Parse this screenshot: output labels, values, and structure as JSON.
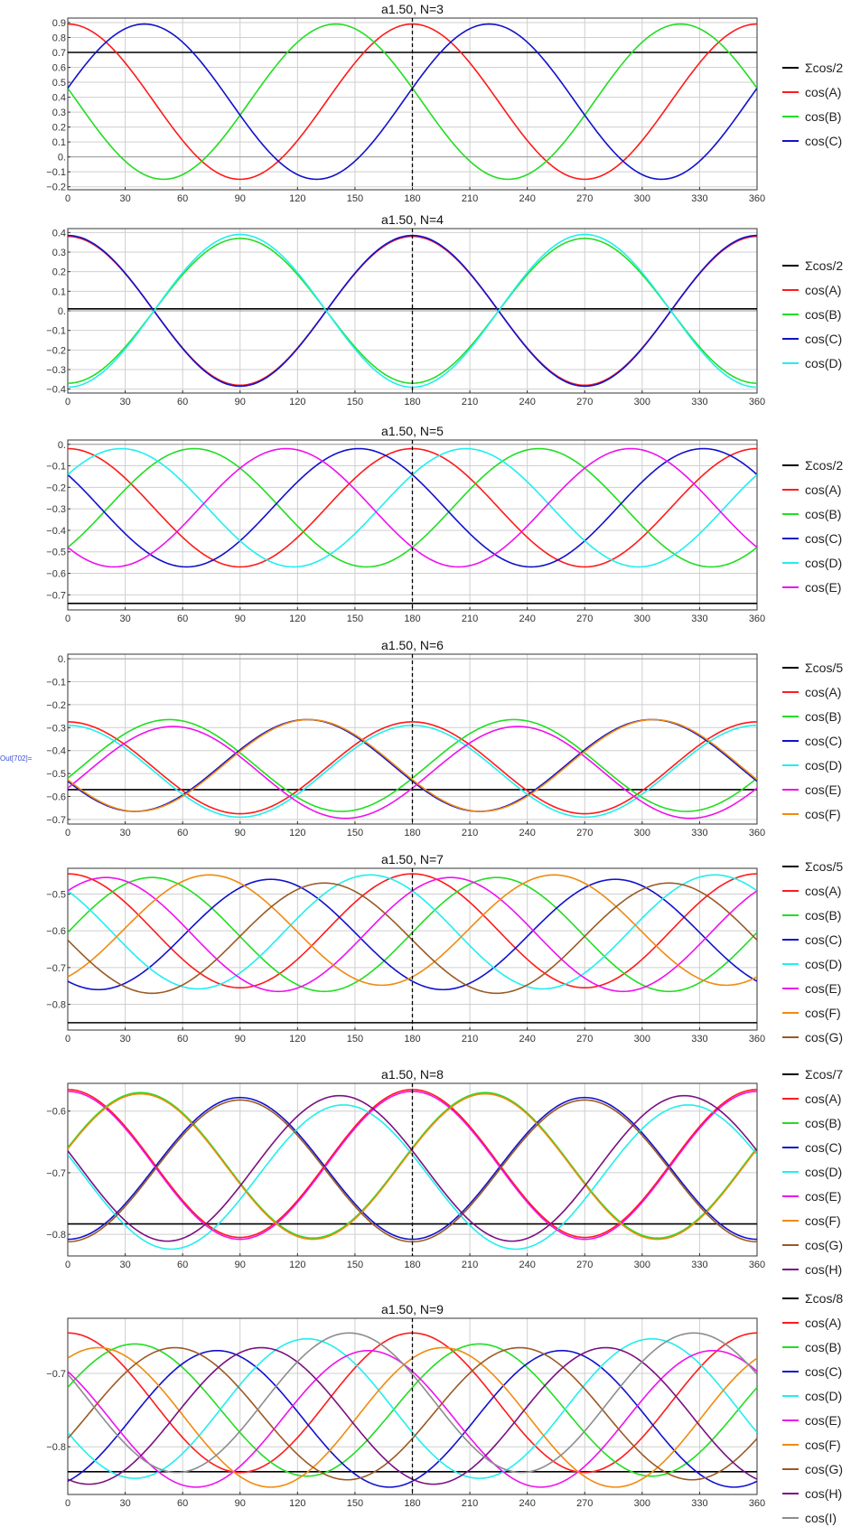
{
  "out_label": "Out[702]=",
  "colors": {
    "sum": "#000000",
    "A": "#ff1a1a",
    "B": "#22dd22",
    "C": "#1111cc",
    "D": "#22eeee",
    "E": "#ee11ee",
    "F": "#f08a10",
    "G": "#9a5a24",
    "H": "#7a1080",
    "I": "#8c8c8c",
    "grid": "#cfcfcf",
    "zero": "#9a9a9a"
  },
  "chart_data": [
    {
      "type": "line",
      "title": "a1.50, N=3",
      "x_range": [
        0,
        360
      ],
      "x_ticks": [
        0,
        30,
        60,
        90,
        120,
        150,
        180,
        210,
        240,
        270,
        300,
        330,
        360
      ],
      "ylim": [
        -0.22,
        0.93
      ],
      "y_ticks": [
        -0.2,
        -0.1,
        0,
        0.1,
        0.2,
        0.3,
        0.4,
        0.5,
        0.6,
        0.7,
        0.8,
        0.9
      ],
      "y_tick_labels": [
        "−0.2",
        "−0.1",
        "0.",
        "0.1",
        "0.2",
        "0.3",
        "0.4",
        "0.5",
        "0.6",
        "0.7",
        "0.8",
        "0.9"
      ],
      "grid": true,
      "dashed_vline_x": 180,
      "legend_position": "right",
      "sum_series": {
        "name": "Σcos/2",
        "value": 0.7
      },
      "series_formula": "y = mean + amp*cos(2*(x - peak) deg) + h2*cos(4*(x - peak) deg), sampled every 1 deg over [0, 360]",
      "series": [
        {
          "name": "cos(A)",
          "color_key": "A",
          "mean": 0.37,
          "amp": 0.52,
          "peak": 180,
          "h2": 0
        },
        {
          "name": "cos(B)",
          "color_key": "B",
          "mean": 0.37,
          "amp": 0.52,
          "peak": 140,
          "h2": 0
        },
        {
          "name": "cos(C)",
          "color_key": "C",
          "mean": 0.37,
          "amp": 0.52,
          "peak": 40,
          "h2": 0
        }
      ]
    },
    {
      "type": "line",
      "title": "a1.50, N=4",
      "x_range": [
        0,
        360
      ],
      "x_ticks": [
        0,
        30,
        60,
        90,
        120,
        150,
        180,
        210,
        240,
        270,
        300,
        330,
        360
      ],
      "ylim": [
        -0.42,
        0.42
      ],
      "y_ticks": [
        -0.4,
        -0.3,
        -0.2,
        -0.1,
        0,
        0.1,
        0.2,
        0.3,
        0.4
      ],
      "y_tick_labels": [
        "−0.4",
        "−0.3",
        "−0.2",
        "−0.1",
        "0.",
        "0.1",
        "0.2",
        "0.3",
        "0.4"
      ],
      "grid": true,
      "dashed_vline_x": 180,
      "legend_position": "right",
      "sum_series": {
        "name": "Σcos/2",
        "value": 0.01
      },
      "series_formula": "y = mean + amp*cos(2*(x - peak) deg) + h2*cos(4*(x - peak) deg), sampled every 1 deg over [0, 360]",
      "series": [
        {
          "name": "cos(A)",
          "color_key": "A",
          "mean": 0.0,
          "amp": 0.38,
          "peak": 180,
          "h2": 0
        },
        {
          "name": "cos(B)",
          "color_key": "B",
          "mean": 0.0,
          "amp": 0.37,
          "peak": 90,
          "h2": 0
        },
        {
          "name": "cos(C)",
          "color_key": "C",
          "mean": 0.0,
          "amp": 0.385,
          "peak": 180,
          "h2": 0
        },
        {
          "name": "cos(D)",
          "color_key": "D",
          "mean": 0.0,
          "amp": 0.39,
          "peak": 90,
          "h2": 0
        }
      ]
    },
    {
      "type": "line",
      "title": "a1.50, N=5",
      "x_range": [
        0,
        360
      ],
      "x_ticks": [
        0,
        30,
        60,
        90,
        120,
        150,
        180,
        210,
        240,
        270,
        300,
        330,
        360
      ],
      "ylim": [
        -0.77,
        0.02
      ],
      "y_ticks": [
        -0.7,
        -0.6,
        -0.5,
        -0.4,
        -0.3,
        -0.2,
        -0.1,
        0
      ],
      "y_tick_labels": [
        "−0.7",
        "−0.6",
        "−0.5",
        "−0.4",
        "−0.3",
        "−0.2",
        "−0.1",
        "0."
      ],
      "grid": true,
      "dashed_vline_x": 180,
      "legend_position": "right",
      "sum_series": {
        "name": "Σcos/2",
        "value": -0.74
      },
      "series_formula": "y = mean + amp*cos(2*(x - peak) deg) + h2*cos(4*(x - peak) deg), sampled every 1 deg over [0, 360]",
      "series": [
        {
          "name": "cos(A)",
          "color_key": "A",
          "mean": -0.295,
          "amp": 0.275,
          "peak": 180,
          "h2": 0
        },
        {
          "name": "cos(B)",
          "color_key": "B",
          "mean": -0.295,
          "amp": 0.275,
          "peak": 66,
          "h2": 0
        },
        {
          "name": "cos(C)",
          "color_key": "C",
          "mean": -0.295,
          "amp": 0.275,
          "peak": 152,
          "h2": 0
        },
        {
          "name": "cos(D)",
          "color_key": "D",
          "mean": -0.295,
          "amp": 0.275,
          "peak": 28,
          "h2": 0
        },
        {
          "name": "cos(E)",
          "color_key": "E",
          "mean": -0.295,
          "amp": 0.275,
          "peak": 114,
          "h2": 0
        }
      ]
    },
    {
      "type": "line",
      "title": "a1.50, N=6",
      "x_range": [
        0,
        360
      ],
      "x_ticks": [
        0,
        30,
        60,
        90,
        120,
        150,
        180,
        210,
        240,
        270,
        300,
        330,
        360
      ],
      "ylim": [
        -0.72,
        0.02
      ],
      "y_ticks": [
        -0.7,
        -0.6,
        -0.5,
        -0.4,
        -0.3,
        -0.2,
        -0.1,
        0
      ],
      "y_tick_labels": [
        "−0.7",
        "−0.6",
        "−0.5",
        "−0.4",
        "−0.3",
        "−0.2",
        "−0.1",
        "0."
      ],
      "grid": true,
      "dashed_vline_x": 180,
      "legend_position": "right",
      "sum_series": {
        "name": "Σcos/5",
        "value": -0.57
      },
      "series_formula": "y = mean + amp*cos(2*(x - peak) deg) + h2*cos(4*(x - peak) deg), sampled every 1 deg over [0, 360]",
      "series": [
        {
          "name": "cos(A)",
          "color_key": "A",
          "mean": -0.475,
          "amp": 0.2,
          "peak": 180,
          "h2": 0
        },
        {
          "name": "cos(B)",
          "color_key": "B",
          "mean": -0.465,
          "amp": 0.2,
          "peak": 53,
          "h2": 0
        },
        {
          "name": "cos(C)",
          "color_key": "C",
          "mean": -0.465,
          "amp": 0.2,
          "peak": 125,
          "h2": 0
        },
        {
          "name": "cos(D)",
          "color_key": "D",
          "mean": -0.49,
          "amp": 0.2,
          "peak": 180,
          "h2": 0
        },
        {
          "name": "cos(E)",
          "color_key": "E",
          "mean": -0.495,
          "amp": 0.2,
          "peak": 55,
          "h2": 0
        },
        {
          "name": "cos(F)",
          "color_key": "F",
          "mean": -0.465,
          "amp": 0.2,
          "peak": 126,
          "h2": 0
        }
      ]
    },
    {
      "type": "line",
      "title": "a1.50, N=7",
      "x_range": [
        0,
        360
      ],
      "x_ticks": [
        0,
        30,
        60,
        90,
        120,
        150,
        180,
        210,
        240,
        270,
        300,
        330,
        360
      ],
      "ylim": [
        -0.87,
        -0.43
      ],
      "y_ticks": [
        -0.8,
        -0.7,
        -0.6,
        -0.5
      ],
      "y_tick_labels": [
        "−0.8",
        "−0.7",
        "−0.6",
        "−0.5"
      ],
      "grid": true,
      "dashed_vline_x": 180,
      "legend_position": "right",
      "sum_series": {
        "name": "Σcos/5",
        "value": -0.85
      },
      "series_formula": "y = mean + amp*cos(2*(x - peak) deg) + h2*cos(4*(x - peak) deg), sampled every 1 deg over [0, 360]",
      "series": [
        {
          "name": "cos(A)",
          "color_key": "A",
          "mean": -0.6,
          "amp": 0.155,
          "peak": 180,
          "h2": 0
        },
        {
          "name": "cos(B)",
          "color_key": "B",
          "mean": -0.61,
          "amp": 0.155,
          "peak": 44,
          "h2": 0
        },
        {
          "name": "cos(C)",
          "color_key": "C",
          "mean": -0.61,
          "amp": 0.15,
          "peak": 106,
          "h2": 0
        },
        {
          "name": "cos(D)",
          "color_key": "D",
          "mean": -0.603,
          "amp": 0.155,
          "peak": 158,
          "h2": 0
        },
        {
          "name": "cos(E)",
          "color_key": "E",
          "mean": -0.61,
          "amp": 0.155,
          "peak": 20,
          "h2": 0
        },
        {
          "name": "cos(F)",
          "color_key": "F",
          "mean": -0.598,
          "amp": 0.15,
          "peak": 74,
          "h2": 0
        },
        {
          "name": "cos(G)",
          "color_key": "G",
          "mean": -0.62,
          "amp": 0.15,
          "peak": 134,
          "h2": 0
        }
      ]
    },
    {
      "type": "line",
      "title": "a1.50, N=8",
      "x_range": [
        0,
        360
      ],
      "x_ticks": [
        0,
        30,
        60,
        90,
        120,
        150,
        180,
        210,
        240,
        270,
        300,
        330,
        360
      ],
      "ylim": [
        -0.835,
        -0.555
      ],
      "y_ticks": [
        -0.8,
        -0.7,
        -0.6
      ],
      "y_tick_labels": [
        "−0.8",
        "−0.7",
        "−0.6"
      ],
      "grid": true,
      "dashed_vline_x": 180,
      "legend_position": "right",
      "sum_series": {
        "name": "Σcos/7",
        "value": -0.783
      },
      "series_formula": "y = mean + amp*cos(2*(x - peak) deg) + h2*cos(4*(x - peak) deg), sampled every 1 deg over [0, 360]",
      "series": [
        {
          "name": "cos(A)",
          "color_key": "A",
          "mean": -0.685,
          "amp": 0.12,
          "peak": 180,
          "h2": 0
        },
        {
          "name": "cos(B)",
          "color_key": "B",
          "mean": -0.688,
          "amp": 0.118,
          "peak": 38,
          "h2": 0
        },
        {
          "name": "cos(C)",
          "color_key": "C",
          "mean": -0.693,
          "amp": 0.115,
          "peak": 90,
          "h2": 0
        },
        {
          "name": "cos(D)",
          "color_key": "D",
          "mean": -0.707,
          "amp": 0.117,
          "peak": 144,
          "h2": 0
        },
        {
          "name": "cos(E)",
          "color_key": "E",
          "mean": -0.688,
          "amp": 0.12,
          "peak": 180,
          "h2": 0
        },
        {
          "name": "cos(F)",
          "color_key": "F",
          "mean": -0.69,
          "amp": 0.118,
          "peak": 38,
          "h2": 0
        },
        {
          "name": "cos(G)",
          "color_key": "G",
          "mean": -0.697,
          "amp": 0.115,
          "peak": 90,
          "h2": 0
        },
        {
          "name": "cos(H)",
          "color_key": "H",
          "mean": -0.693,
          "amp": 0.118,
          "peak": 142,
          "h2": 0
        }
      ]
    },
    {
      "type": "line",
      "title": "a1.50, N=9",
      "x_range": [
        0,
        360
      ],
      "x_ticks": [
        0,
        30,
        60,
        90,
        120,
        150,
        180,
        210,
        240,
        270,
        300,
        330,
        360
      ],
      "ylim": [
        -0.865,
        -0.625
      ],
      "y_ticks": [
        -0.8,
        -0.7
      ],
      "y_tick_labels": [
        "−0.8",
        "−0.7"
      ],
      "grid": true,
      "dashed_vline_x": 180,
      "legend_position": "right",
      "sum_series": {
        "name": "Σcos/8",
        "value": -0.834
      },
      "series_formula": "y = mean + amp*cos(2*(x - peak) deg) + h2*cos(4*(x - peak) deg), sampled every 1 deg over [0, 360]",
      "series": [
        {
          "name": "cos(A)",
          "color_key": "A",
          "mean": -0.74,
          "amp": 0.095,
          "peak": 180,
          "h2": 0
        },
        {
          "name": "cos(B)",
          "color_key": "B",
          "mean": -0.75,
          "amp": 0.09,
          "peak": 35,
          "h2": 0
        },
        {
          "name": "cos(C)",
          "color_key": "C",
          "mean": -0.762,
          "amp": 0.093,
          "peak": 78,
          "h2": 0
        },
        {
          "name": "cos(D)",
          "color_key": "D",
          "mean": -0.748,
          "amp": 0.095,
          "peak": 125,
          "h2": 0
        },
        {
          "name": "cos(E)",
          "color_key": "E",
          "mean": -0.762,
          "amp": 0.093,
          "peak": 157,
          "h2": 0
        },
        {
          "name": "cos(F)",
          "color_key": "F",
          "mean": -0.76,
          "amp": 0.095,
          "peak": 16,
          "h2": 0
        },
        {
          "name": "cos(G)",
          "color_key": "G",
          "mean": -0.755,
          "amp": 0.09,
          "peak": 56,
          "h2": 0
        },
        {
          "name": "cos(H)",
          "color_key": "H",
          "mean": -0.758,
          "amp": 0.093,
          "peak": 101,
          "h2": 0
        },
        {
          "name": "cos(I)",
          "color_key": "I",
          "mean": -0.74,
          "amp": 0.095,
          "peak": 147,
          "h2": 0
        }
      ]
    }
  ]
}
